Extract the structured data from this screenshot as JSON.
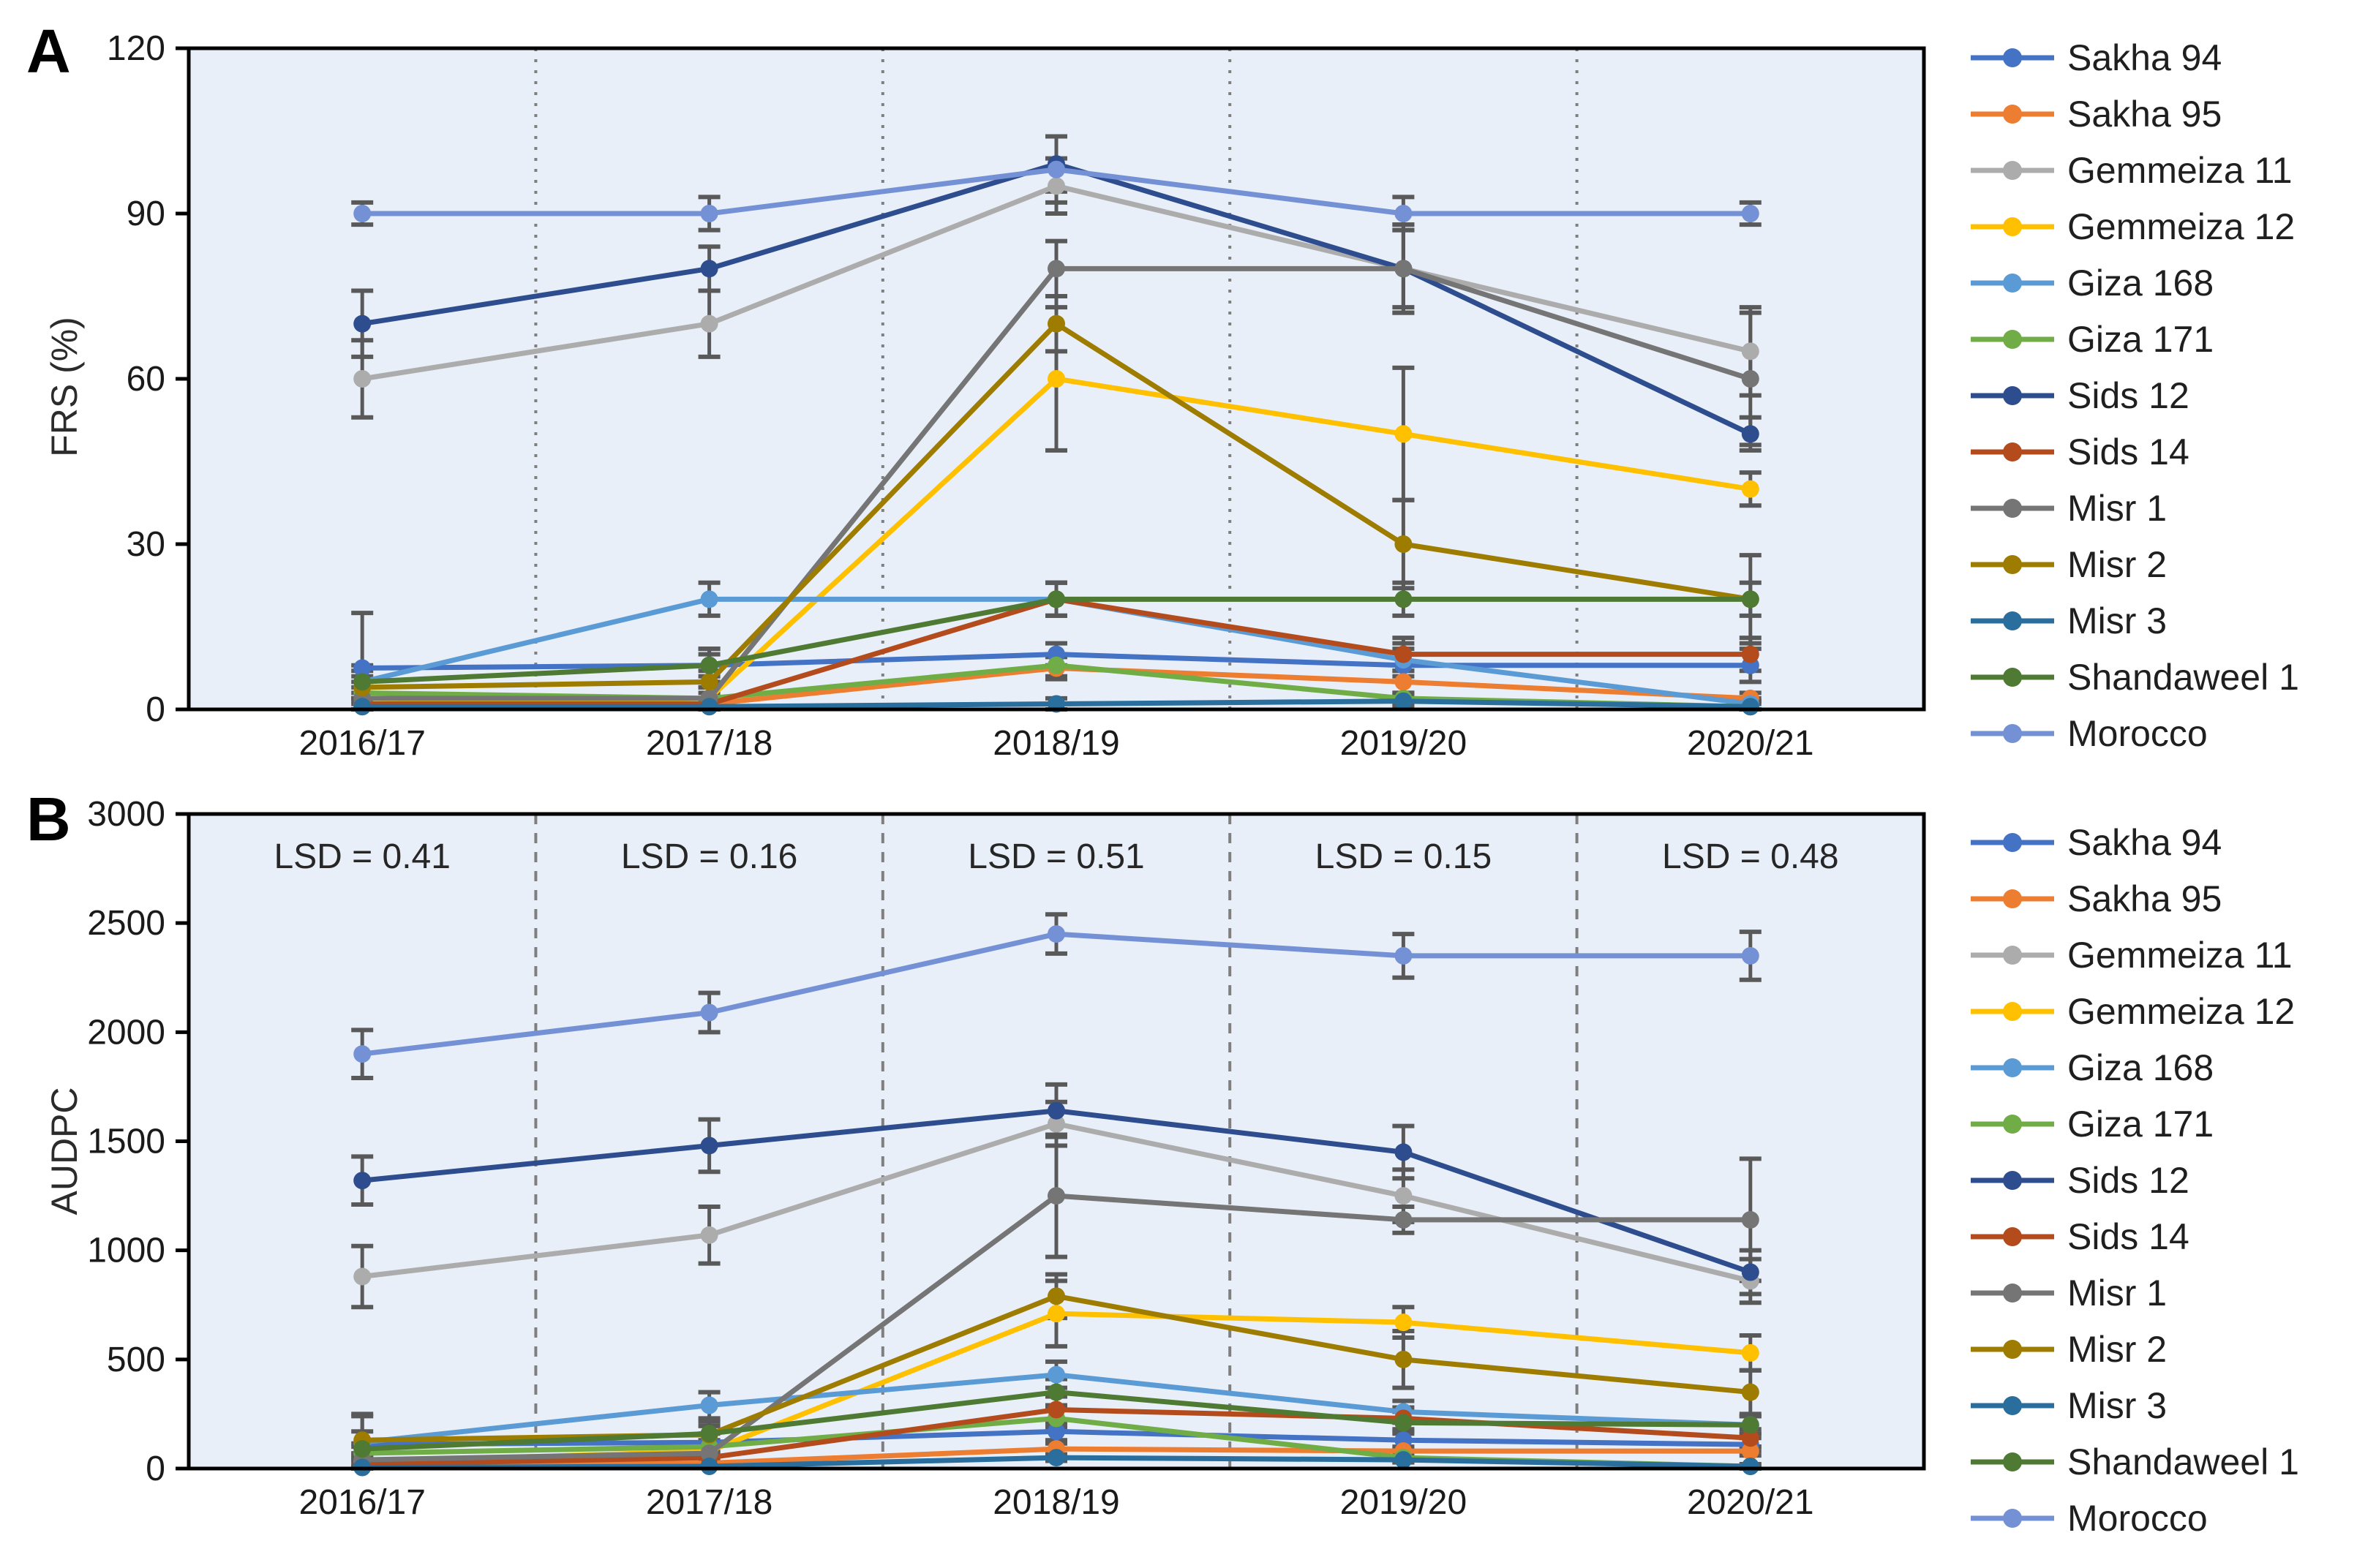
{
  "figure": {
    "type": "two-panel line chart with error bars",
    "seasons": [
      "2016/17",
      "2017/18",
      "2018/19",
      "2019/20",
      "2020/21"
    ]
  },
  "chart_data": [
    {
      "id": "A",
      "type": "line",
      "panel_label": "A",
      "ylabel": "FRS (%)",
      "ylim": [
        0,
        120
      ],
      "ytick_step": 30,
      "grid": "off",
      "legend_position": "right",
      "plot_bg": "#E9EFF8",
      "separator_style": "dotted",
      "categories": [
        "2016/17",
        "2017/18",
        "2018/19",
        "2019/20",
        "2020/21"
      ],
      "lsd_labels": null,
      "series": [
        {
          "name": "Sakha 94",
          "color": "#4472C4",
          "values": [
            7.5,
            8,
            10,
            8,
            8
          ],
          "err": [
            10,
            3,
            2,
            3,
            3
          ]
        },
        {
          "name": "Sakha 95",
          "color": "#ED7D31",
          "values": [
            1,
            1,
            7.5,
            5,
            2
          ],
          "err": [
            1,
            1,
            2,
            2,
            1
          ]
        },
        {
          "name": "Gemmeiza 11",
          "color": "#ACACAC",
          "values": [
            60,
            70,
            95,
            80,
            65
          ],
          "err": [
            7,
            6,
            5,
            7,
            8
          ]
        },
        {
          "name": "Gemmeiza 12",
          "color": "#FFC000",
          "values": [
            1,
            2,
            60,
            50,
            40
          ],
          "err": [
            1,
            2,
            13,
            12,
            3
          ]
        },
        {
          "name": "Giza 168",
          "color": "#5B9BD5",
          "values": [
            5,
            20,
            20,
            9,
            1
          ],
          "err": [
            3,
            3,
            3,
            3,
            1
          ]
        },
        {
          "name": "Giza 171",
          "color": "#70AD47",
          "values": [
            3,
            2,
            8,
            2,
            0.5
          ],
          "err": [
            2,
            2,
            2,
            1,
            1
          ]
        },
        {
          "name": "Sids 12",
          "color": "#2E4D8E",
          "values": [
            70,
            80,
            99,
            80,
            50
          ],
          "err": [
            6,
            4,
            5,
            8,
            3
          ]
        },
        {
          "name": "Sids 14",
          "color": "#B34B1C",
          "values": [
            1,
            1,
            20,
            10,
            10
          ],
          "err": [
            1,
            1,
            3,
            3,
            3
          ]
        },
        {
          "name": "Misr 1",
          "color": "#757575",
          "values": [
            2,
            2,
            80,
            80,
            60
          ],
          "err": [
            2,
            9,
            5,
            8,
            12
          ]
        },
        {
          "name": "Misr 2",
          "color": "#9E7C00",
          "values": [
            4,
            5,
            70,
            30,
            20
          ],
          "err": [
            2,
            2,
            5,
            8,
            8
          ]
        },
        {
          "name": "Misr 3",
          "color": "#2A6E9E",
          "values": [
            0.5,
            0.5,
            1,
            1.5,
            0.5
          ],
          "err": [
            1,
            1,
            1,
            1,
            1
          ]
        },
        {
          "name": "Shandaweel 1",
          "color": "#4E7A33",
          "values": [
            5,
            8,
            20,
            20,
            20
          ],
          "err": [
            2,
            2,
            3,
            3,
            3
          ]
        },
        {
          "name": "Morocco",
          "color": "#7591D6",
          "values": [
            90,
            90,
            98,
            90,
            90
          ],
          "err": [
            2,
            3,
            6,
            3,
            2
          ]
        }
      ]
    },
    {
      "id": "B",
      "type": "line",
      "panel_label": "B",
      "ylabel": "AUDPC",
      "ylim": [
        0,
        3000
      ],
      "ytick_step": 500,
      "grid": "off",
      "legend_position": "right",
      "plot_bg": "#E9EFF8",
      "separator_style": "dashed",
      "categories": [
        "2016/17",
        "2017/18",
        "2018/19",
        "2019/20",
        "2020/21"
      ],
      "lsd_labels": [
        "LSD = 0.41",
        "LSD = 0.16",
        "LSD = 0.51",
        "LSD = 0.15",
        "LSD = 0.48"
      ],
      "series": [
        {
          "name": "Sakha 94",
          "color": "#4472C4",
          "values": [
            110,
            120,
            170,
            130,
            110
          ],
          "err": [
            60,
            40,
            40,
            40,
            30
          ]
        },
        {
          "name": "Sakha 95",
          "color": "#ED7D31",
          "values": [
            10,
            25,
            90,
            80,
            80
          ],
          "err": [
            8,
            10,
            25,
            20,
            20
          ]
        },
        {
          "name": "Gemmeiza 11",
          "color": "#ACACAC",
          "values": [
            880,
            1070,
            1580,
            1250,
            860
          ],
          "err": [
            140,
            130,
            100,
            120,
            100
          ]
        },
        {
          "name": "Gemmeiza 12",
          "color": "#FFC000",
          "values": [
            30,
            80,
            710,
            670,
            530
          ],
          "err": [
            20,
            30,
            150,
            70,
            80
          ]
        },
        {
          "name": "Giza 168",
          "color": "#5B9BD5",
          "values": [
            120,
            290,
            430,
            260,
            200
          ],
          "err": [
            120,
            60,
            60,
            50,
            40
          ]
        },
        {
          "name": "Giza 171",
          "color": "#70AD47",
          "values": [
            70,
            100,
            230,
            50,
            10
          ],
          "err": [
            30,
            30,
            40,
            20,
            10
          ]
        },
        {
          "name": "Sids 12",
          "color": "#2E4D8E",
          "values": [
            1320,
            1480,
            1640,
            1450,
            900
          ],
          "err": [
            110,
            120,
            120,
            120,
            100
          ]
        },
        {
          "name": "Sids 14",
          "color": "#B34B1C",
          "values": [
            20,
            50,
            270,
            230,
            140
          ],
          "err": [
            15,
            20,
            60,
            50,
            40
          ]
        },
        {
          "name": "Misr 1",
          "color": "#757575",
          "values": [
            40,
            70,
            1250,
            1140,
            1140
          ],
          "err": [
            30,
            40,
            280,
            60,
            280
          ]
        },
        {
          "name": "Misr 2",
          "color": "#9E7C00",
          "values": [
            130,
            155,
            790,
            500,
            350
          ],
          "err": [
            120,
            60,
            100,
            130,
            100
          ]
        },
        {
          "name": "Misr 3",
          "color": "#2A6E9E",
          "values": [
            5,
            10,
            50,
            40,
            10
          ],
          "err": [
            4,
            5,
            15,
            12,
            5
          ]
        },
        {
          "name": "Shandaweel 1",
          "color": "#4E7A33",
          "values": [
            90,
            160,
            350,
            210,
            200
          ],
          "err": [
            25,
            35,
            60,
            50,
            40
          ]
        },
        {
          "name": "Morocco",
          "color": "#7591D6",
          "values": [
            1900,
            2090,
            2450,
            2350,
            2350
          ],
          "err": [
            110,
            90,
            90,
            100,
            110
          ]
        }
      ]
    }
  ]
}
